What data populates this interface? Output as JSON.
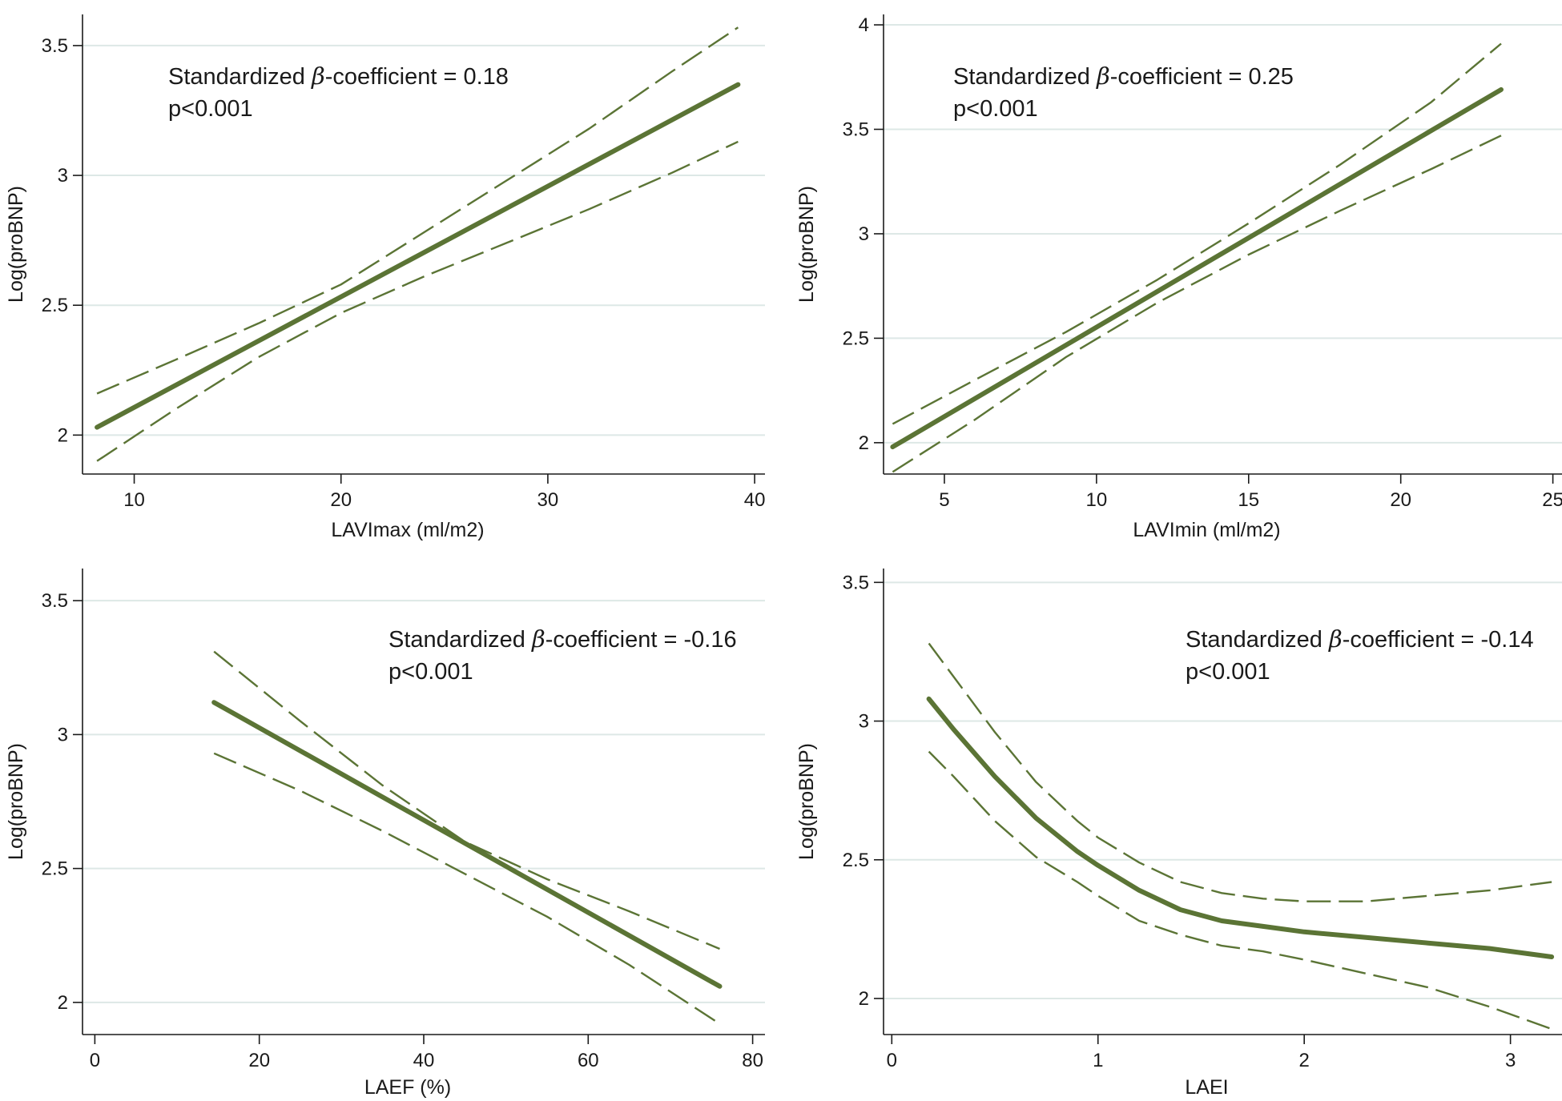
{
  "figure": {
    "line_color": "#5b7435",
    "grid_color": "#dde8e6",
    "axis_color": "#1a1a1a"
  },
  "chart_data": [
    {
      "type": "line",
      "xlabel": "LAVImax (ml/m2)",
      "ylabel": "Log(proBNP)",
      "xlim": [
        7.5,
        40.5
      ],
      "ylim": [
        1.85,
        3.62
      ],
      "xticks": [
        10,
        20,
        30,
        40
      ],
      "yticks": [
        2,
        2.5,
        3,
        3.5
      ],
      "annotation": {
        "prefix": "Standardized ",
        "beta": "β",
        "suffix": "-coefficient = 0.18",
        "pvalue": "p<0.001"
      },
      "series": [
        {
          "role": "fit",
          "style": "solid",
          "x": [
            8.2,
            39.2
          ],
          "y": [
            2.03,
            3.35
          ]
        },
        {
          "role": "ci_upper",
          "style": "dashed",
          "x": [
            8.2,
            12,
            16,
            20,
            24,
            28,
            32,
            36,
            39.2
          ],
          "y": [
            2.16,
            2.29,
            2.43,
            2.58,
            2.78,
            2.98,
            3.18,
            3.4,
            3.57
          ]
        },
        {
          "role": "ci_lower",
          "style": "dashed",
          "x": [
            8.2,
            12,
            16,
            20,
            24,
            28,
            32,
            36,
            39.2
          ],
          "y": [
            1.9,
            2.1,
            2.3,
            2.47,
            2.61,
            2.74,
            2.87,
            3.01,
            3.13
          ]
        }
      ]
    },
    {
      "type": "line",
      "xlabel": "LAVImin (ml/m2)",
      "ylabel": "Log(proBNP)",
      "xlim": [
        3.0,
        25.3
      ],
      "ylim": [
        1.85,
        4.05
      ],
      "xticks": [
        5,
        10,
        15,
        20,
        25
      ],
      "yticks": [
        2,
        2.5,
        3,
        3.5,
        4
      ],
      "annotation": {
        "prefix": "Standardized ",
        "beta": "β",
        "suffix": "-coefficient = 0.25",
        "pvalue": "p<0.001"
      },
      "series": [
        {
          "role": "fit",
          "style": "solid",
          "x": [
            3.3,
            23.3
          ],
          "y": [
            1.98,
            3.69
          ]
        },
        {
          "role": "ci_upper",
          "style": "dashed",
          "x": [
            3.3,
            6,
            9,
            12,
            15,
            18,
            21,
            23.3
          ],
          "y": [
            2.09,
            2.3,
            2.53,
            2.78,
            3.05,
            3.33,
            3.63,
            3.91
          ]
        },
        {
          "role": "ci_lower",
          "style": "dashed",
          "x": [
            3.3,
            6,
            9,
            12,
            15,
            18,
            21,
            23.3
          ],
          "y": [
            1.86,
            2.11,
            2.41,
            2.67,
            2.9,
            3.11,
            3.31,
            3.47
          ]
        }
      ]
    },
    {
      "type": "line",
      "xlabel": "LAEF (%)",
      "ylabel": "Log(proBNP)",
      "xlim": [
        -1.5,
        81.5
      ],
      "ylim": [
        1.88,
        3.62
      ],
      "xticks": [
        0,
        20,
        40,
        60,
        80
      ],
      "yticks": [
        2,
        2.5,
        3,
        3.5
      ],
      "annotation": {
        "prefix": "Standardized ",
        "beta": "β",
        "suffix": "-coefficient = -0.16",
        "pvalue": "p<0.001"
      },
      "series": [
        {
          "role": "fit",
          "style": "solid",
          "x": [
            14.5,
            76
          ],
          "y": [
            3.12,
            2.06
          ]
        },
        {
          "role": "ci_upper",
          "style": "dashed",
          "x": [
            14.5,
            25,
            35,
            45,
            55,
            65,
            76
          ],
          "y": [
            3.31,
            3.05,
            2.81,
            2.6,
            2.46,
            2.34,
            2.2
          ]
        },
        {
          "role": "ci_lower",
          "style": "dashed",
          "x": [
            14.5,
            25,
            35,
            45,
            55,
            65,
            76
          ],
          "y": [
            2.93,
            2.79,
            2.64,
            2.48,
            2.32,
            2.14,
            1.92
          ]
        }
      ]
    },
    {
      "type": "line",
      "xlabel": "LAEI",
      "ylabel": "Log(proBNP)",
      "xlim": [
        -0.04,
        3.25
      ],
      "ylim": [
        1.87,
        3.55
      ],
      "xticks": [
        0,
        1,
        2,
        3
      ],
      "yticks": [
        2,
        2.5,
        3,
        3.5
      ],
      "annotation": {
        "prefix": "Standardized ",
        "beta": "β",
        "suffix": "-coefficient = -0.14",
        "pvalue": "p<0.001"
      },
      "series": [
        {
          "role": "fit",
          "style": "solid",
          "x": [
            0.18,
            0.3,
            0.5,
            0.7,
            0.9,
            1.0,
            1.2,
            1.4,
            1.6,
            1.8,
            2.0,
            2.3,
            2.6,
            2.9,
            3.2
          ],
          "y": [
            3.08,
            2.97,
            2.8,
            2.65,
            2.53,
            2.48,
            2.39,
            2.32,
            2.28,
            2.26,
            2.24,
            2.22,
            2.2,
            2.18,
            2.15
          ]
        },
        {
          "role": "ci_upper",
          "style": "dashed",
          "x": [
            0.18,
            0.3,
            0.5,
            0.7,
            0.9,
            1.0,
            1.2,
            1.4,
            1.6,
            1.8,
            2.0,
            2.3,
            2.6,
            2.9,
            3.2
          ],
          "y": [
            3.28,
            3.16,
            2.96,
            2.78,
            2.64,
            2.58,
            2.49,
            2.42,
            2.38,
            2.36,
            2.35,
            2.35,
            2.37,
            2.39,
            2.42
          ]
        },
        {
          "role": "ci_lower",
          "style": "dashed",
          "x": [
            0.18,
            0.3,
            0.5,
            0.7,
            0.9,
            1.0,
            1.2,
            1.4,
            1.6,
            1.8,
            2.0,
            2.3,
            2.6,
            2.9,
            3.2
          ],
          "y": [
            2.89,
            2.8,
            2.64,
            2.51,
            2.42,
            2.37,
            2.28,
            2.23,
            2.19,
            2.17,
            2.14,
            2.09,
            2.04,
            1.97,
            1.89
          ]
        }
      ]
    }
  ]
}
